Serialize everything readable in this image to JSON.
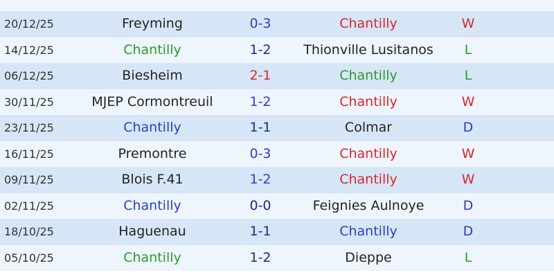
{
  "table": {
    "rows": [
      {
        "date": "20/12/25",
        "home": "Freyming",
        "home_color": "#222222",
        "score": "0-3",
        "score_color": "#2b3fc4",
        "away": "Chantilly",
        "away_color": "#d9262c",
        "result": "W",
        "result_color": "#d9262c"
      },
      {
        "date": "14/12/25",
        "home": "Chantilly",
        "home_color": "#2a9a2a",
        "score": "1-2",
        "score_color": "#1a2a8a",
        "away": "Thionville Lusitanos",
        "away_color": "#222222",
        "result": "L",
        "result_color": "#2a9a2a"
      },
      {
        "date": "06/12/25",
        "home": "Biesheim",
        "home_color": "#222222",
        "score": "2-1",
        "score_color": "#d9262c",
        "away": "Chantilly",
        "away_color": "#2a9a2a",
        "result": "L",
        "result_color": "#2a9a2a"
      },
      {
        "date": "30/11/25",
        "home": "MJEP Cormontreuil",
        "home_color": "#222222",
        "score": "1-2",
        "score_color": "#2b3fc4",
        "away": "Chantilly",
        "away_color": "#d9262c",
        "result": "W",
        "result_color": "#d9262c"
      },
      {
        "date": "23/11/25",
        "home": "Chantilly",
        "home_color": "#2b3fc4",
        "score": "1-1",
        "score_color": "#1a2a8a",
        "away": "Colmar",
        "away_color": "#222222",
        "result": "D",
        "result_color": "#2b3fc4"
      },
      {
        "date": "16/11/25",
        "home": "Premontre",
        "home_color": "#222222",
        "score": "0-3",
        "score_color": "#2b3fc4",
        "away": "Chantilly",
        "away_color": "#d9262c",
        "result": "W",
        "result_color": "#d9262c"
      },
      {
        "date": "09/11/25",
        "home": "Blois F.41",
        "home_color": "#222222",
        "score": "1-2",
        "score_color": "#2b3fc4",
        "away": "Chantilly",
        "away_color": "#d9262c",
        "result": "W",
        "result_color": "#d9262c"
      },
      {
        "date": "02/11/25",
        "home": "Chantilly",
        "home_color": "#2b3fc4",
        "score": "0-0",
        "score_color": "#1a2a8a",
        "away": "Feignies Aulnoye",
        "away_color": "#222222",
        "result": "D",
        "result_color": "#2b3fc4"
      },
      {
        "date": "18/10/25",
        "home": "Haguenau",
        "home_color": "#222222",
        "score": "1-1",
        "score_color": "#1a2a8a",
        "away": "Chantilly",
        "away_color": "#2b3fc4",
        "result": "D",
        "result_color": "#2b3fc4"
      },
      {
        "date": "05/10/25",
        "home": "Chantilly",
        "home_color": "#2a9a2a",
        "score": "1-2",
        "score_color": "#1a2a8a",
        "away": "Dieppe",
        "away_color": "#222222",
        "result": "L",
        "result_color": "#2a9a2a"
      }
    ]
  }
}
